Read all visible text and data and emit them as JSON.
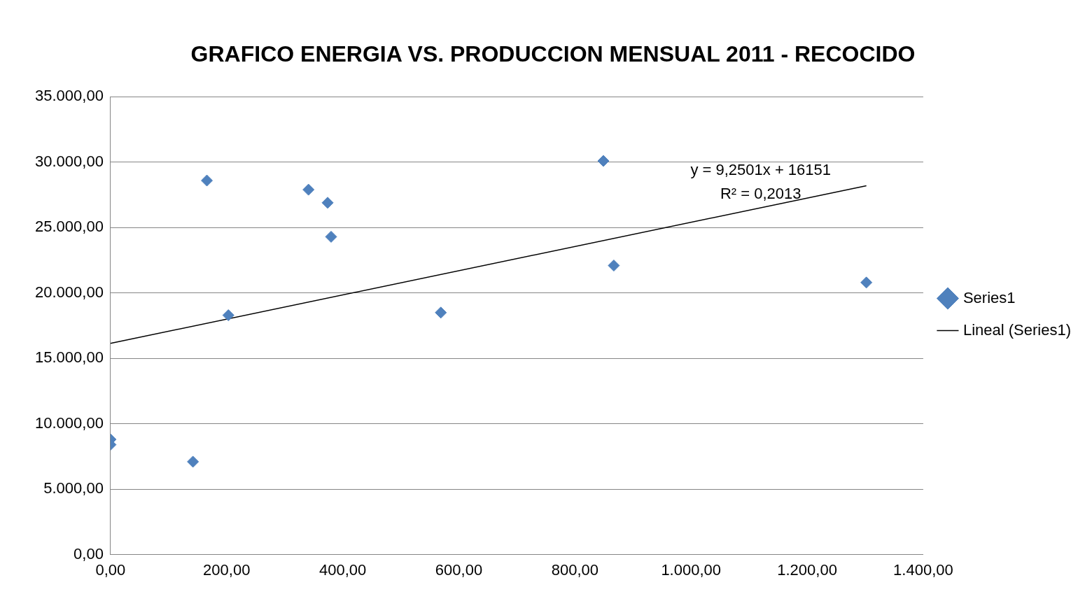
{
  "chart_data": {
    "type": "scatter",
    "title": "GRAFICO ENERGIA VS. PRODUCCION MENSUAL 2011 - RECOCIDO",
    "xlim": [
      0,
      1400
    ],
    "xticks": [
      {
        "value": 0,
        "label": "0,00"
      },
      {
        "value": 200,
        "label": "200,00"
      },
      {
        "value": 400,
        "label": "400,00"
      },
      {
        "value": 600,
        "label": "600,00"
      },
      {
        "value": 800,
        "label": "800,00"
      },
      {
        "value": 1000,
        "label": "1.000,00"
      },
      {
        "value": 1200,
        "label": "1.200,00"
      },
      {
        "value": 1400,
        "label": "1.400,00"
      }
    ],
    "ylim": [
      0,
      35000
    ],
    "yticks": [
      {
        "value": 0,
        "label": "0,00"
      },
      {
        "value": 5000,
        "label": "5.000,00"
      },
      {
        "value": 10000,
        "label": "10.000,00"
      },
      {
        "value": 15000,
        "label": "15.000,00"
      },
      {
        "value": 20000,
        "label": "20.000,00"
      },
      {
        "value": 25000,
        "label": "25.000,00"
      },
      {
        "value": 30000,
        "label": "30.000,00"
      },
      {
        "value": 35000,
        "label": "35.000,00"
      }
    ],
    "grid": "y",
    "legend": "right",
    "marker": "diamond",
    "series": [
      {
        "name": "Series1",
        "color": "#4f81bd",
        "x": [
          0,
          0,
          142,
          166,
          203,
          341,
          374,
          380,
          569,
          849,
          867,
          1302
        ],
        "values": [
          8800,
          8400,
          7100,
          28600,
          18300,
          27900,
          26900,
          24300,
          18500,
          30100,
          22100,
          20800
        ]
      },
      {
        "name": "Lineal (Series1)",
        "type": "line",
        "color": "#000000",
        "marker": "none",
        "x": [
          0,
          1302
        ],
        "values": [
          16150,
          28200
        ]
      }
    ],
    "annotations": [
      "y = 9,2501x + 16151",
      "R² = 0,2013"
    ]
  }
}
